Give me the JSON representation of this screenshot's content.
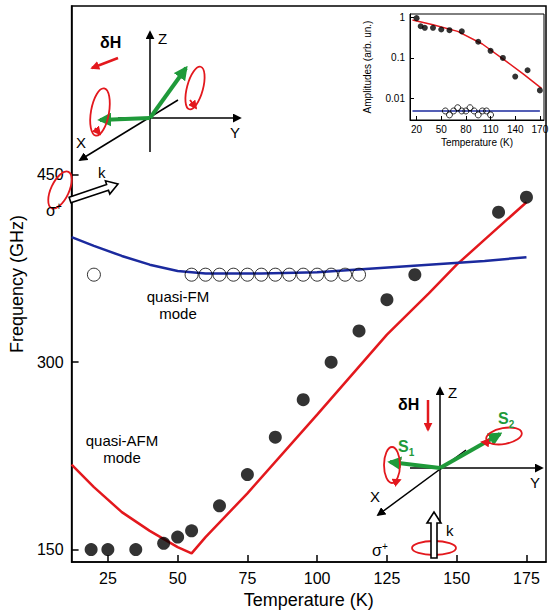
{
  "chart_data": [
    {
      "type": "scatter",
      "x_label": "Temperature (K)",
      "y_label": "Frequency (GHz)",
      "xlim": [
        12,
        182
      ],
      "xticks": [
        25,
        50,
        75,
        100,
        125,
        150,
        175
      ],
      "ylim": [
        140,
        585
      ],
      "yticks": [
        150,
        300,
        450
      ],
      "annotations": [
        "quasi-FM mode",
        "quasi-AFM mode"
      ],
      "series": [
        {
          "type": "scatter",
          "marker": "filled circle",
          "color": "#000000",
          "x": [
            19,
            25,
            35,
            45,
            50,
            55,
            65,
            75,
            85,
            95,
            105,
            115,
            125,
            135,
            165,
            175
          ],
          "values": [
            150,
            150,
            150,
            155,
            160,
            165,
            185,
            210,
            240,
            270,
            300,
            325,
            350,
            370,
            420,
            432
          ]
        },
        {
          "type": "scatter",
          "marker": "open circle",
          "color": "#000000",
          "x": [
            20,
            55,
            60,
            65,
            70,
            75,
            80,
            85,
            90,
            95,
            100,
            105,
            110,
            115
          ],
          "values": [
            370,
            370,
            370,
            370,
            370,
            370,
            370,
            370,
            370,
            370,
            370,
            370,
            370,
            370
          ]
        },
        {
          "type": "line",
          "line_style": "solid",
          "color": "#e3181d",
          "x": [
            12,
            20,
            30,
            40,
            50,
            55,
            60,
            75,
            100,
            125,
            140,
            150,
            160,
            175
          ],
          "values": [
            218,
            200,
            180,
            165,
            152,
            147,
            160,
            195,
            258,
            322,
            355,
            378,
            398,
            428
          ]
        },
        {
          "type": "line",
          "line_style": "solid",
          "color": "#1b2a9e",
          "x": [
            12,
            20,
            30,
            40,
            50,
            60,
            80,
            100,
            120,
            140,
            160,
            175
          ],
          "values": [
            400,
            393,
            385,
            378,
            373,
            371,
            371,
            372,
            375,
            378,
            381,
            384
          ]
        }
      ]
    },
    {
      "type": "scatter",
      "log": "y",
      "x_label": "Temperature (K)",
      "y_label": "Amplitudes (arb. un.)",
      "xlim": [
        12,
        175
      ],
      "xticks": [
        20,
        50,
        80,
        110,
        140,
        170
      ],
      "ylim": [
        0.003,
        1.2
      ],
      "yticks": [
        0.01,
        0.1,
        1
      ],
      "series": [
        {
          "type": "scatter",
          "marker": "filled circle",
          "color": "#000000",
          "x": [
            20,
            25,
            30,
            40,
            50,
            60,
            75,
            95,
            110,
            125,
            140,
            155,
            170
          ],
          "values": [
            0.95,
            0.6,
            0.55,
            0.55,
            0.5,
            0.48,
            0.45,
            0.25,
            0.15,
            0.1,
            0.035,
            0.05,
            0.016
          ]
        },
        {
          "type": "scatter",
          "marker": "open circle",
          "color": "#000000",
          "x": [
            55,
            60,
            65,
            70,
            75,
            80,
            85,
            90,
            95,
            100,
            105,
            110
          ],
          "values": [
            0.005,
            0.004,
            0.005,
            0.006,
            0.005,
            0.005,
            0.006,
            0.005,
            0.004,
            0.005,
            0.005,
            0.004
          ]
        },
        {
          "type": "line",
          "line_style": "solid",
          "color": "#e3181d",
          "x": [
            15,
            40,
            70,
            100,
            130,
            150,
            172
          ],
          "values": [
            0.85,
            0.65,
            0.45,
            0.22,
            0.08,
            0.04,
            0.018
          ]
        },
        {
          "type": "line",
          "line_style": "solid",
          "color": "#1b2a9e",
          "x": [
            15,
            170
          ],
          "values": [
            0.005,
            0.005
          ]
        }
      ]
    }
  ],
  "diagrams": [
    {
      "labels": [
        "δH",
        "Z",
        "X",
        "Y",
        "k",
        "σ+"
      ]
    },
    {
      "labels": [
        "δH",
        "Z",
        "X",
        "Y",
        "S1",
        "S2",
        "k",
        "σ+"
      ]
    }
  ]
}
